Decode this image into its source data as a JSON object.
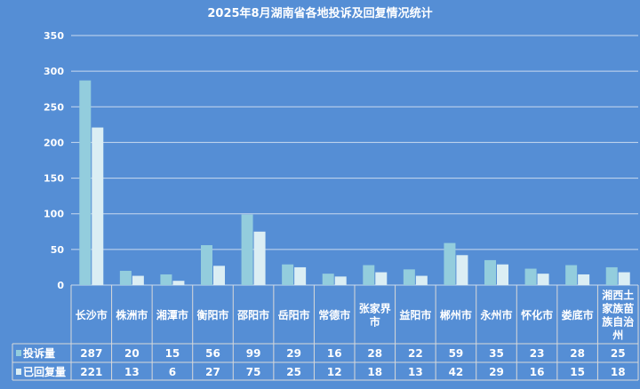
{
  "chart_data": {
    "type": "bar",
    "title": "2025年8月湖南省各地投诉及回复情况统计",
    "categories": [
      "长沙市",
      "株洲市",
      "湘潭市",
      "衡阳市",
      "邵阳市",
      "岳阳市",
      "常德市",
      "张家界市",
      "益阳市",
      "郴州市",
      "永州市",
      "怀化市",
      "娄底市",
      "湘西土家族苗族自治州"
    ],
    "category_lines": [
      [
        "长沙市"
      ],
      [
        "株洲市"
      ],
      [
        "湘潭市"
      ],
      [
        "衡阳市"
      ],
      [
        "邵阳市"
      ],
      [
        "岳阳市"
      ],
      [
        "常德市"
      ],
      [
        "张家界",
        "市"
      ],
      [
        "益阳市"
      ],
      [
        "郴州市"
      ],
      [
        "永州市"
      ],
      [
        "怀化市"
      ],
      [
        "娄底市"
      ],
      [
        "湘西土",
        "家族苗",
        "族自治",
        "州"
      ]
    ],
    "series": [
      {
        "name": "投诉量",
        "values": [
          287,
          20,
          15,
          56,
          99,
          29,
          16,
          28,
          22,
          59,
          35,
          23,
          28,
          25
        ],
        "color": "#93cddd"
      },
      {
        "name": "已回复量",
        "values": [
          221,
          13,
          6,
          27,
          75,
          25,
          12,
          18,
          13,
          42,
          29,
          16,
          15,
          18
        ],
        "color": "#dbeef4"
      }
    ],
    "yticks": [
      0,
      50,
      100,
      150,
      200,
      250,
      300,
      350
    ],
    "ylim": [
      0,
      350
    ],
    "grid": true,
    "legend": "data-table"
  },
  "colors": {
    "background": "#558ed5",
    "grid": "#c9d9ef"
  }
}
